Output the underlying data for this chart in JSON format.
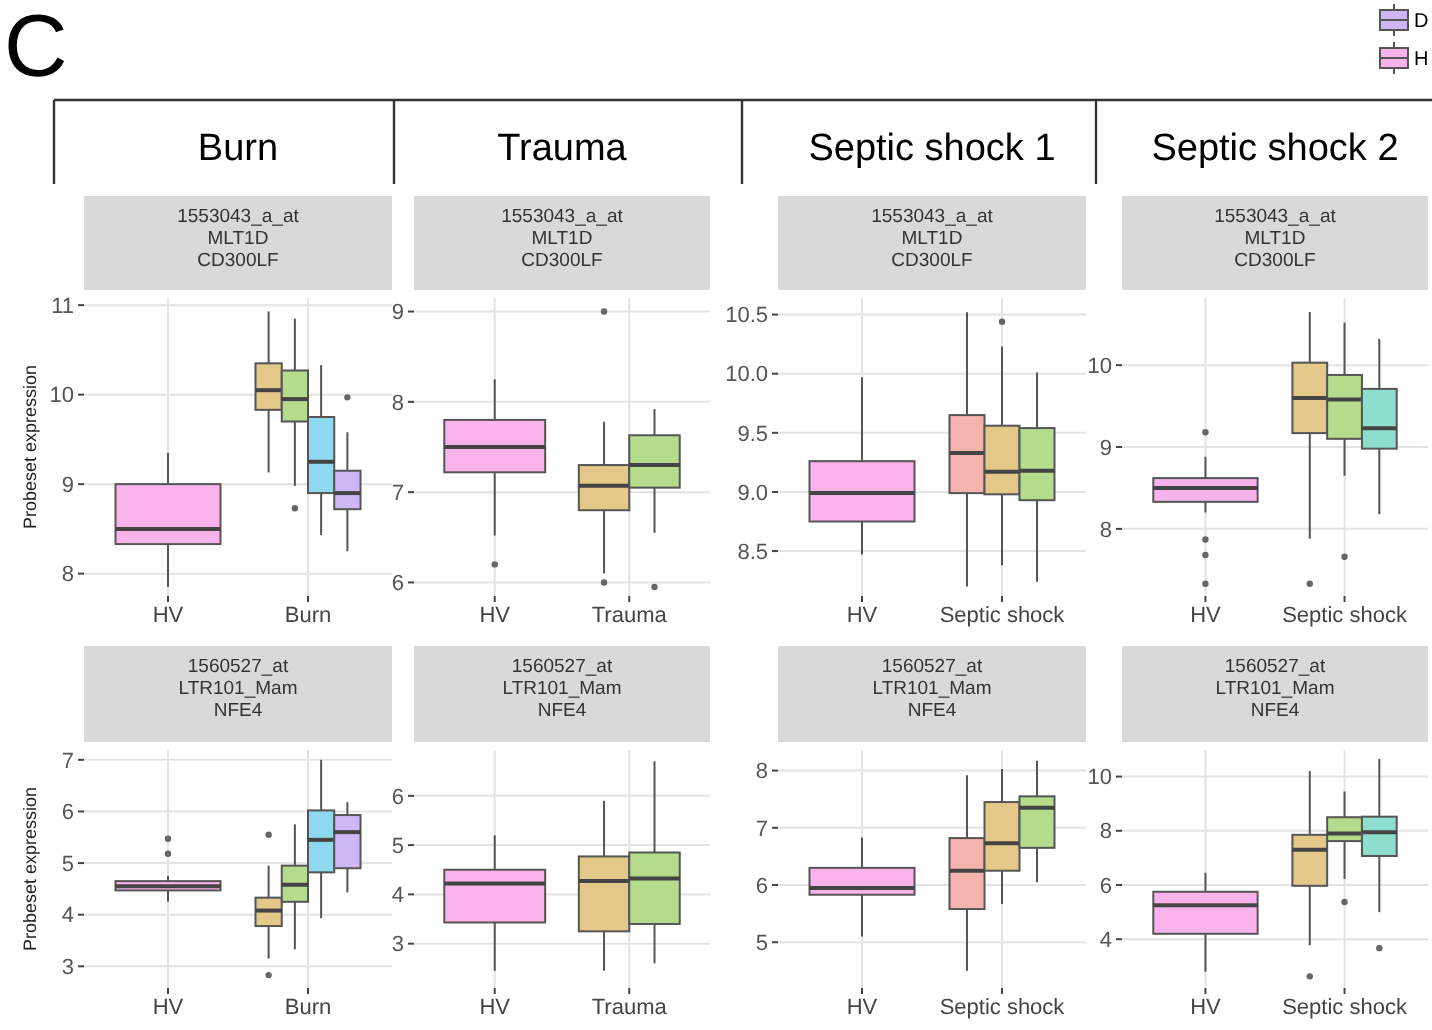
{
  "chart_data": [
    {
      "type": "box",
      "title": "1553043_a_at\nMLT1D\nCD300LF",
      "ylabel": "Probeset expression",
      "annotations": [
        "C",
        "Burn"
      ],
      "categories": [
        "HV",
        "Burn"
      ],
      "ylim": [
        7.75,
        11.08
      ],
      "yticks": [
        8,
        9,
        10,
        11
      ],
      "grid": true,
      "legend": "top right",
      "series": [
        {
          "name": "H",
          "color": "#f9b3ea",
          "boxes": [
            {
              "low": 7.85,
              "q1": 8.33,
              "median": 8.5,
              "q3": 9.0,
              "high": 9.35
            },
            null
          ]
        },
        {
          "color": "#e3c88a",
          "boxes": [
            null,
            {
              "low": 9.13,
              "q1": 9.83,
              "median": 10.05,
              "q3": 10.35,
              "high": 10.93
            }
          ]
        },
        {
          "color": "#b5dc8c",
          "boxes": [
            null,
            {
              "low": 8.98,
              "q1": 9.7,
              "median": 9.95,
              "q3": 10.27,
              "high": 10.85,
              "outliers": [
                8.73
              ]
            }
          ]
        },
        {
          "color": "#8fd9f0",
          "boxes": [
            null,
            {
              "low": 8.43,
              "q1": 8.9,
              "median": 9.25,
              "q3": 9.75,
              "high": 10.33
            }
          ]
        },
        {
          "name": "D",
          "color": "#cdb8f5",
          "boxes": [
            null,
            {
              "low": 8.25,
              "q1": 8.72,
              "median": 8.9,
              "q3": 9.15,
              "high": 9.58,
              "outliers": [
                9.97
              ]
            }
          ]
        }
      ]
    },
    {
      "type": "box",
      "title": "1553043_a_at\nMLT1D\nCD300LF",
      "annotations": [
        "Trauma"
      ],
      "categories": [
        "HV",
        "Trauma"
      ],
      "ylim": [
        5.85,
        9.15
      ],
      "yticks": [
        6,
        7,
        8,
        9
      ],
      "grid": true,
      "series": [
        {
          "color": "#f9b3ea",
          "boxes": [
            {
              "low": 6.52,
              "q1": 7.22,
              "median": 7.5,
              "q3": 7.8,
              "high": 8.25,
              "outliers": [
                6.2
              ]
            },
            null
          ]
        },
        {
          "color": "#e3c88a",
          "boxes": [
            null,
            {
              "low": 6.1,
              "q1": 6.8,
              "median": 7.07,
              "q3": 7.3,
              "high": 7.78,
              "outliers": [
                9.0,
                6.0
              ]
            }
          ]
        },
        {
          "color": "#b5dc8c",
          "boxes": [
            null,
            {
              "low": 6.55,
              "q1": 7.05,
              "median": 7.3,
              "q3": 7.63,
              "high": 7.92,
              "outliers": [
                5.95
              ]
            }
          ]
        }
      ]
    },
    {
      "type": "box",
      "title": "1553043_a_at\nMLT1D\nCD300LF",
      "annotations": [
        "Septic shock 1"
      ],
      "categories": [
        "HV",
        "Septic shock"
      ],
      "ylim": [
        8.12,
        10.64
      ],
      "yticks": [
        {
          "value": 8.5,
          "label": "8.5"
        },
        {
          "value": 9,
          "label": "9.0"
        },
        {
          "value": 9.5,
          "label": "9.5"
        },
        {
          "value": 10,
          "label": "10.0"
        },
        {
          "value": 10.5,
          "label": "10.5"
        }
      ],
      "grid": true,
      "series": [
        {
          "color": "#f9b3ea",
          "boxes": [
            {
              "low": 8.47,
              "q1": 8.75,
              "median": 8.99,
              "q3": 9.26,
              "high": 9.97
            },
            null
          ]
        },
        {
          "color": "#f5b3ad",
          "boxes": [
            null,
            {
              "low": 8.2,
              "q1": 8.99,
              "median": 9.33,
              "q3": 9.65,
              "high": 10.52
            }
          ]
        },
        {
          "color": "#e3c88a",
          "boxes": [
            null,
            {
              "low": 8.38,
              "q1": 8.98,
              "median": 9.17,
              "q3": 9.56,
              "high": 10.23,
              "outliers": [
                10.44
              ]
            }
          ]
        },
        {
          "color": "#b5dc8c",
          "boxes": [
            null,
            {
              "low": 8.24,
              "q1": 8.93,
              "median": 9.18,
              "q3": 9.54,
              "high": 10.01
            }
          ]
        }
      ]
    },
    {
      "type": "box",
      "title": "1553043_a_at\nMLT1D\nCD300LF",
      "annotations": [
        "Septic shock 2"
      ],
      "categories": [
        "HV",
        "Septic shock"
      ],
      "ylim": [
        7.18,
        10.82
      ],
      "yticks": [
        8,
        9,
        10
      ],
      "grid": true,
      "series": [
        {
          "color": "#f9b3ea",
          "boxes": [
            {
              "low": 8.2,
              "q1": 8.33,
              "median": 8.5,
              "q3": 8.62,
              "high": 8.88,
              "outliers": [
                9.18,
                7.87,
                7.68,
                7.33
              ]
            },
            null
          ]
        },
        {
          "color": "#e3c88a",
          "boxes": [
            null,
            {
              "low": 7.88,
              "q1": 9.17,
              "median": 9.6,
              "q3": 10.03,
              "high": 10.65,
              "outliers": [
                7.33
              ]
            }
          ]
        },
        {
          "color": "#b5dc8c",
          "boxes": [
            null,
            {
              "low": 8.65,
              "q1": 9.1,
              "median": 9.58,
              "q3": 9.88,
              "high": 10.52,
              "outliers": [
                7.66
              ]
            }
          ]
        },
        {
          "color": "#8ddecc",
          "boxes": [
            null,
            {
              "low": 8.18,
              "q1": 8.98,
              "median": 9.23,
              "q3": 9.71,
              "high": 10.32
            }
          ]
        }
      ]
    },
    {
      "type": "box",
      "title": "1560527_at\nLTR101_Mam\nNFE4",
      "ylabel": "Probeset expression",
      "categories": [
        "HV",
        "Burn"
      ],
      "ylim": [
        2.58,
        7.19
      ],
      "yticks": [
        3,
        4,
        5,
        6,
        7
      ],
      "grid": true,
      "series": [
        {
          "color": "#f9b3ea",
          "boxes": [
            {
              "low": 4.25,
              "q1": 4.47,
              "median": 4.55,
              "q3": 4.65,
              "high": 4.75,
              "outliers": [
                5.47,
                5.18
              ]
            },
            null
          ]
        },
        {
          "color": "#e3c88a",
          "boxes": [
            null,
            {
              "low": 3.15,
              "q1": 3.78,
              "median": 4.08,
              "q3": 4.33,
              "high": 4.95,
              "outliers": [
                5.55,
                2.83
              ]
            }
          ]
        },
        {
          "color": "#b5dc8c",
          "boxes": [
            null,
            {
              "low": 3.33,
              "q1": 4.25,
              "median": 4.58,
              "q3": 4.95,
              "high": 5.75
            }
          ]
        },
        {
          "color": "#8fd9f0",
          "boxes": [
            null,
            {
              "low": 3.93,
              "q1": 4.82,
              "median": 5.45,
              "q3": 6.02,
              "high": 7.0
            }
          ]
        },
        {
          "color": "#cdb8f5",
          "boxes": [
            null,
            {
              "low": 4.43,
              "q1": 4.9,
              "median": 5.6,
              "q3": 5.93,
              "high": 6.18
            }
          ]
        }
      ]
    },
    {
      "type": "box",
      "title": "1560527_at\nLTR101_Mam\nNFE4",
      "categories": [
        "HV",
        "Trauma"
      ],
      "ylim": [
        2.1,
        6.93
      ],
      "yticks": [
        3,
        4,
        5,
        6
      ],
      "grid": true,
      "series": [
        {
          "color": "#f9b3ea",
          "boxes": [
            {
              "low": 2.45,
              "q1": 3.43,
              "median": 4.22,
              "q3": 4.5,
              "high": 5.2
            },
            null
          ]
        },
        {
          "color": "#e3c88a",
          "boxes": [
            null,
            {
              "low": 2.45,
              "q1": 3.25,
              "median": 4.27,
              "q3": 4.77,
              "high": 5.9
            }
          ]
        },
        {
          "color": "#b5dc8c",
          "boxes": [
            null,
            {
              "low": 2.6,
              "q1": 3.4,
              "median": 4.32,
              "q3": 4.85,
              "high": 6.7
            }
          ]
        }
      ]
    },
    {
      "type": "box",
      "title": "1560527_at\nLTR101_Mam\nNFE4",
      "categories": [
        "HV",
        "Septic shock"
      ],
      "ylim": [
        4.2,
        8.36
      ],
      "yticks": [
        5,
        6,
        7,
        8
      ],
      "grid": true,
      "series": [
        {
          "color": "#f9b3ea",
          "boxes": [
            {
              "low": 5.1,
              "q1": 5.83,
              "median": 5.95,
              "q3": 6.3,
              "high": 6.83
            },
            null
          ]
        },
        {
          "color": "#f5b3ad",
          "boxes": [
            null,
            {
              "low": 4.5,
              "q1": 5.58,
              "median": 6.25,
              "q3": 6.82,
              "high": 7.92
            }
          ]
        },
        {
          "color": "#e3c88a",
          "boxes": [
            null,
            {
              "low": 5.67,
              "q1": 6.25,
              "median": 6.73,
              "q3": 7.45,
              "high": 8.03
            }
          ]
        },
        {
          "color": "#b5dc8c",
          "boxes": [
            null,
            {
              "low": 6.05,
              "q1": 6.65,
              "median": 7.35,
              "q3": 7.55,
              "high": 8.17
            }
          ]
        }
      ]
    },
    {
      "type": "box",
      "title": "1560527_at\nLTR101_Mam\nNFE4",
      "categories": [
        "HV",
        "Septic shock"
      ],
      "ylim": [
        2.2,
        10.98
      ],
      "yticks": [
        4,
        6,
        8,
        10
      ],
      "grid": true,
      "series": [
        {
          "color": "#f9b3ea",
          "boxes": [
            {
              "low": 2.8,
              "q1": 4.2,
              "median": 5.25,
              "q3": 5.75,
              "high": 6.45
            },
            null
          ]
        },
        {
          "color": "#e3c88a",
          "boxes": [
            null,
            {
              "low": 3.78,
              "q1": 5.97,
              "median": 7.3,
              "q3": 7.85,
              "high": 10.2,
              "outliers": [
                2.63
              ]
            }
          ]
        },
        {
          "color": "#b5dc8c",
          "boxes": [
            null,
            {
              "low": 6.22,
              "q1": 7.62,
              "median": 7.9,
              "q3": 8.5,
              "high": 9.45,
              "outliers": [
                5.37
              ]
            }
          ]
        },
        {
          "color": "#8ddecc",
          "boxes": [
            null,
            {
              "low": 5.0,
              "q1": 7.07,
              "median": 7.95,
              "q3": 8.52,
              "high": 10.65,
              "outliers": [
                3.67
              ]
            }
          ]
        }
      ]
    }
  ]
}
